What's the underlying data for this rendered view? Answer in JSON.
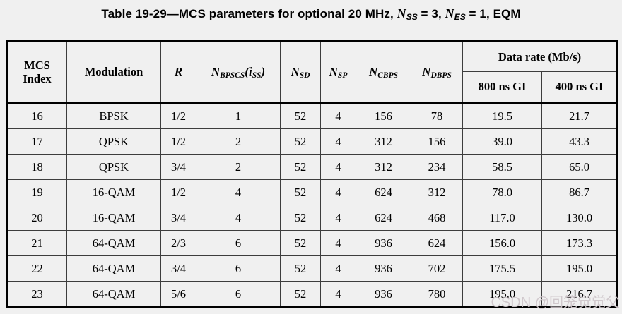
{
  "page": {
    "background_color": "#f0f0f0",
    "border_color": "#000000"
  },
  "title": {
    "prefix": "Table 19-29—MCS parameters for optional 20 MHz, ",
    "n1_base": "N",
    "n1_sub": "SS",
    "n1_rest": " = 3, ",
    "n2_base": "N",
    "n2_sub": "ES",
    "n2_rest": " = 1, EQM"
  },
  "table": {
    "headers": {
      "mcs_index_line1": "MCS",
      "mcs_index_line2": "Index",
      "modulation": "Modulation",
      "r": "R",
      "nbpscs": {
        "base": "N",
        "sub": "BPSCS",
        "open": "(",
        "ivar": "i",
        "isub": "SS",
        "close": ")"
      },
      "nsd": {
        "base": "N",
        "sub": "SD"
      },
      "nsp": {
        "base": "N",
        "sub": "SP"
      },
      "ncbps": {
        "base": "N",
        "sub": "CBPS"
      },
      "ndbps": {
        "base": "N",
        "sub": "DBPS"
      },
      "data_rate_group": "Data rate (Mb/s)",
      "gi_800": "800 ns GI",
      "gi_400": "400 ns GI"
    },
    "rows": [
      [
        "16",
        "BPSK",
        "1/2",
        "1",
        "52",
        "4",
        "156",
        "78",
        "19.5",
        "21.7"
      ],
      [
        "17",
        "QPSK",
        "1/2",
        "2",
        "52",
        "4",
        "312",
        "156",
        "39.0",
        "43.3"
      ],
      [
        "18",
        "QPSK",
        "3/4",
        "2",
        "52",
        "4",
        "312",
        "234",
        "58.5",
        "65.0"
      ],
      [
        "19",
        "16-QAM",
        "1/2",
        "4",
        "52",
        "4",
        "624",
        "312",
        "78.0",
        "86.7"
      ],
      [
        "20",
        "16-QAM",
        "3/4",
        "4",
        "52",
        "4",
        "624",
        "468",
        "117.0",
        "130.0"
      ],
      [
        "21",
        "64-QAM",
        "2/3",
        "6",
        "52",
        "4",
        "936",
        "624",
        "156.0",
        "173.3"
      ],
      [
        "22",
        "64-QAM",
        "3/4",
        "6",
        "52",
        "4",
        "936",
        "702",
        "175.5",
        "195.0"
      ],
      [
        "23",
        "64-QAM",
        "5/6",
        "6",
        "52",
        "4",
        "936",
        "780",
        "195.0",
        "216.7"
      ]
    ]
  },
  "watermark": {
    "text": "CSDN @回笼觉觉父",
    "color": "#cec5c9"
  }
}
